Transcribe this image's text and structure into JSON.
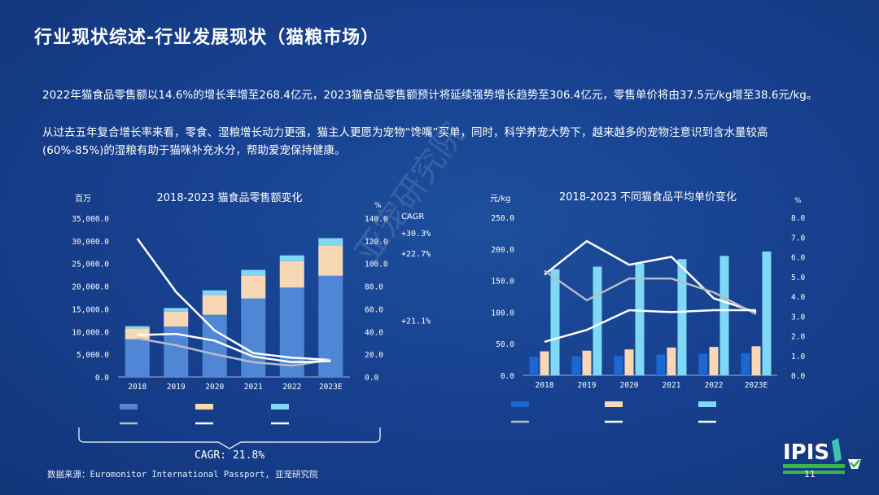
{
  "page": {
    "title": "行业现状综述-行业发展现状（猫粮市场）",
    "paragraph1": "2022年猫食品零售额以14.6%的增长率增至268.4亿元，2023猫食品零售额预计将延续强势增长趋势至306.4亿元，零售单价将由37.5元/kg增至38.6元/kg。",
    "paragraph2": "从过去五年复合增长率来看，零食、湿粮增长动力更强，猫主人更愿为宠物“馋嘴”买单，同时，科学养宠大势下，越来越多的宠物注意识到含水量较高(60%-85%)的湿粮有助于猫咪补充水分，帮助爱宠保持健康。",
    "source": "数据来源：Euromonitor International Passport, 亚宠研究院",
    "page_number": "11",
    "watermark": "亚宠研究院",
    "logo_text": "IPIS"
  },
  "colors": {
    "bar_dark": "#4f86d6",
    "bar_beige": "#f8d7b5",
    "bar_light": "#7fd8f5",
    "bar_blue2": "#1c68d2",
    "line_white": "#ffffff",
    "line_grey": "#b6bcc8"
  },
  "chart_data": [
    {
      "type": "bar",
      "title": "2018-2023 猫食品零售额变化",
      "ylabel": "百万",
      "y2label": "%",
      "categories": [
        "2018",
        "2019",
        "2020",
        "2021",
        "2022",
        "2023E"
      ],
      "yticks": [
        "35,000.0",
        "30,000.0",
        "25,000.0",
        "20,000.0",
        "15,000.0",
        "10,000.0",
        "5,000.0",
        "0.0"
      ],
      "y2ticks": [
        "140.0",
        "120.0",
        "100.0",
        "80.0",
        "60.0",
        "40.0",
        "20.0",
        "0.0"
      ],
      "ylim": [
        0,
        35000
      ],
      "y2lim": [
        0,
        140
      ],
      "stacked": true,
      "series": [
        {
          "values": [
            8300,
            11100,
            13700,
            17300,
            19700,
            22300
          ],
          "color_key": "bar_dark"
        },
        {
          "values": [
            2400,
            3300,
            4400,
            5100,
            5800,
            6600
          ],
          "color_key": "bar_beige"
        },
        {
          "values": [
            500,
            800,
            1000,
            1200,
            1300,
            1700
          ],
          "color_key": "bar_light"
        }
      ],
      "lines": [
        {
          "values": [
            122,
            75,
            41,
            21,
            17,
            15
          ],
          "color_key": "line_white"
        },
        {
          "values": [
            34,
            28,
            20,
            13,
            10,
            15
          ],
          "color_key": "line_grey"
        },
        {
          "values": [
            37,
            38,
            32,
            18,
            13,
            14
          ],
          "color_key": "line_white"
        }
      ],
      "cagr_header": "CAGR",
      "cagr_labels": [
        {
          "text": "+30.3%",
          "level": 127
        },
        {
          "text": "+22.7%",
          "level": 109
        },
        {
          "text": "+21.1%",
          "level": 50
        }
      ],
      "overall_cagr": "CAGR: 21.8%",
      "legend_placement": "bottom"
    },
    {
      "type": "bar",
      "title": "2018-2023 不同猫食品平均单价变化",
      "ylabel": "元/kg",
      "y2label": "%",
      "categories": [
        "2018",
        "2019",
        "2020",
        "2021",
        "2022",
        "2023E"
      ],
      "yticks": [
        "250.0",
        "200.0",
        "150.0",
        "100.0",
        "50.0",
        "0.0"
      ],
      "y2ticks": [
        "8.0",
        "7.0",
        "6.0",
        "5.0",
        "4.0",
        "3.0",
        "2.0",
        "1.0",
        "0.0"
      ],
      "ylim": [
        0,
        250
      ],
      "y2lim": [
        0,
        8
      ],
      "stacked": false,
      "series": [
        {
          "values": [
            29,
            30,
            31,
            33,
            34,
            35
          ],
          "color_key": "bar_blue2"
        },
        {
          "values": [
            38,
            39,
            41,
            44,
            45,
            46
          ],
          "color_key": "bar_beige"
        },
        {
          "values": [
            168,
            172,
            177,
            184,
            189,
            196
          ],
          "color_key": "bar_light"
        }
      ],
      "lines": [
        {
          "values": [
            5.1,
            6.8,
            5.6,
            6.0,
            3.9,
            3.2
          ],
          "color_key": "line_white"
        },
        {
          "values": [
            5.3,
            3.8,
            4.9,
            4.9,
            4.2,
            3.1
          ],
          "color_key": "line_grey"
        },
        {
          "values": [
            1.7,
            2.3,
            3.3,
            3.2,
            3.3,
            3.3
          ],
          "color_key": "line_white"
        }
      ],
      "legend_placement": "bottom"
    }
  ]
}
